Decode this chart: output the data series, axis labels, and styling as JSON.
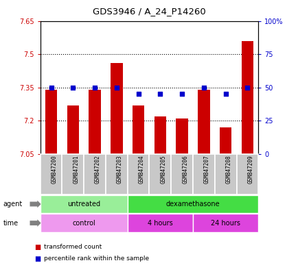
{
  "title": "GDS3946 / A_24_P14260",
  "samples": [
    "GSM847200",
    "GSM847201",
    "GSM847202",
    "GSM847203",
    "GSM847204",
    "GSM847205",
    "GSM847206",
    "GSM847207",
    "GSM847208",
    "GSM847209"
  ],
  "transformed_counts": [
    7.34,
    7.27,
    7.34,
    7.46,
    7.27,
    7.22,
    7.21,
    7.34,
    7.17,
    7.56
  ],
  "percentile_ranks": [
    50,
    50,
    50,
    50,
    45,
    45,
    45,
    50,
    45,
    50
  ],
  "ylim_left": [
    7.05,
    7.65
  ],
  "ylim_right": [
    0,
    100
  ],
  "yticks_left": [
    7.05,
    7.2,
    7.35,
    7.5,
    7.65
  ],
  "yticks_right": [
    0,
    25,
    50,
    75,
    100
  ],
  "ytick_labels_left": [
    "7.05",
    "7.2",
    "7.35",
    "7.5",
    "7.65"
  ],
  "ytick_labels_right": [
    "0",
    "25",
    "50",
    "75",
    "100%"
  ],
  "hlines": [
    7.2,
    7.35,
    7.5
  ],
  "bar_color": "#cc0000",
  "dot_color": "#0000cc",
  "agent_groups": [
    {
      "label": "untreated",
      "start": 0,
      "end": 3,
      "color": "#99ee99"
    },
    {
      "label": "dexamethasone",
      "start": 4,
      "end": 9,
      "color": "#44dd44"
    }
  ],
  "time_groups": [
    {
      "label": "control",
      "start": 0,
      "end": 3,
      "color": "#ee99ee"
    },
    {
      "label": "4 hours",
      "start": 4,
      "end": 6,
      "color": "#dd44dd"
    },
    {
      "label": "24 hours",
      "start": 7,
      "end": 9,
      "color": "#dd44dd"
    }
  ],
  "legend_items": [
    {
      "label": "transformed count",
      "color": "#cc0000"
    },
    {
      "label": "percentile rank within the sample",
      "color": "#0000cc"
    }
  ],
  "grid_color": "#000000",
  "bar_width": 0.55,
  "tick_label_color_left": "#cc0000",
  "tick_label_color_right": "#0000cc",
  "bg_sample_row": "#c8c8c8"
}
